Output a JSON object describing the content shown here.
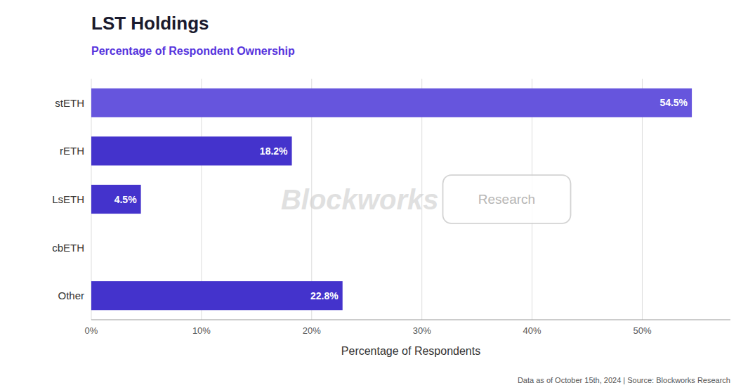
{
  "chart_data": {
    "type": "bar",
    "orientation": "horizontal",
    "title": "LST Holdings",
    "subtitle": "Percentage of Respondent Ownership",
    "xlabel": "Percentage of Respondents",
    "footnote": "Data as of October 15th, 2024 | Source: Blockworks Research",
    "annotations": [
      "Blockworks",
      "Research"
    ],
    "categories": [
      "stETH",
      "rETH",
      "LsETH",
      "cbETH",
      "Other"
    ],
    "values": [
      54.5,
      18.2,
      4.5,
      0.0,
      22.8
    ],
    "value_labels": [
      "54.5%",
      "18.2%",
      "4.5%",
      null,
      "22.8%"
    ],
    "data_labels": true,
    "colors": [
      "#6655DD",
      "#4433CC",
      "#4433CC",
      "#4433CC",
      "#4433CC"
    ],
    "xlim": [
      0,
      58
    ],
    "xticks": [
      {
        "value": 0,
        "label": "0%"
      },
      {
        "value": 10,
        "label": "10%"
      },
      {
        "value": 20,
        "label": "20%"
      },
      {
        "value": 30,
        "label": "30%"
      },
      {
        "value": 40,
        "label": "40%"
      },
      {
        "value": 50,
        "label": "50%"
      }
    ],
    "grid": true
  }
}
